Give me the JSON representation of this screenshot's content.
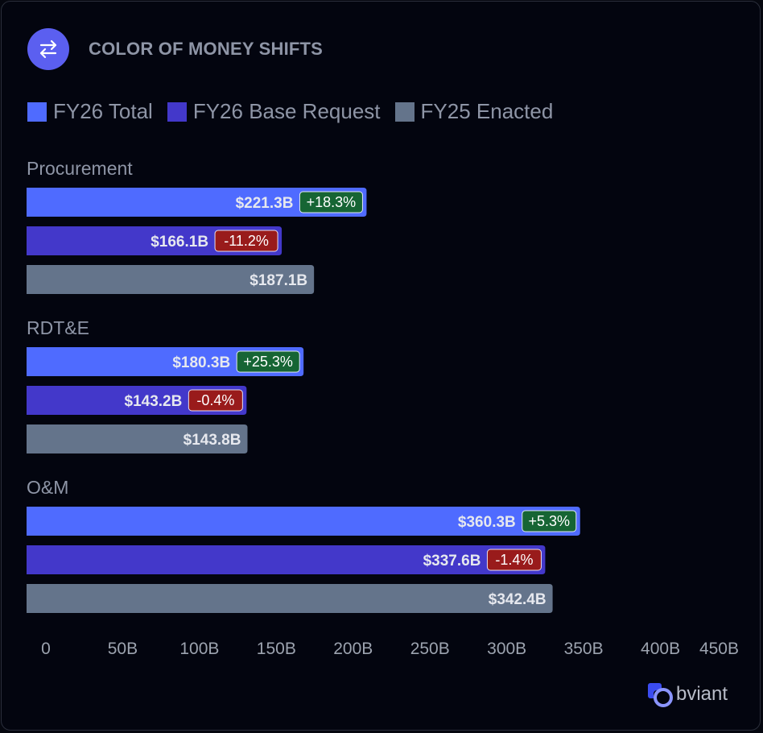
{
  "header": {
    "title": "COLOR OF MONEY SHIFTS",
    "icon": "swap-arrows-icon"
  },
  "colors": {
    "fy26_total": "#4f6bff",
    "fy26_base": "#4338ca",
    "fy25_enacted": "#64748b",
    "badge_up": "#166534",
    "badge_down": "#991b1b",
    "label_text": "#e6e8ee",
    "muted_text": "#8e95a6",
    "axis_text": "#9ca3af"
  },
  "chart_data": {
    "type": "bar",
    "orientation": "horizontal",
    "title": "COLOR OF MONEY SHIFTS",
    "series_names": [
      "FY26 Total",
      "FY26 Base Request",
      "FY25 Enacted"
    ],
    "categories": [
      {
        "name": "Procurement",
        "bars": [
          {
            "series": "FY26 Total",
            "value": 221.3,
            "label": "$221.3B",
            "change": "+18.3%",
            "direction": "up"
          },
          {
            "series": "FY26 Base Request",
            "value": 166.1,
            "label": "$166.1B",
            "change": "-11.2%",
            "direction": "down"
          },
          {
            "series": "FY25 Enacted",
            "value": 187.1,
            "label": "$187.1B"
          }
        ]
      },
      {
        "name": "RDT&E",
        "bars": [
          {
            "series": "FY26 Total",
            "value": 180.3,
            "label": "$180.3B",
            "change": "+25.3%",
            "direction": "up"
          },
          {
            "series": "FY26 Base Request",
            "value": 143.2,
            "label": "$143.2B",
            "change": "-0.4%",
            "direction": "down"
          },
          {
            "series": "FY25 Enacted",
            "value": 143.8,
            "label": "$143.8B"
          }
        ]
      },
      {
        "name": "O&M",
        "bars": [
          {
            "series": "FY26 Total",
            "value": 360.3,
            "label": "$360.3B",
            "change": "+5.3%",
            "direction": "up"
          },
          {
            "series": "FY26 Base Request",
            "value": 337.6,
            "label": "$337.6B",
            "change": "-1.4%",
            "direction": "down"
          },
          {
            "series": "FY25 Enacted",
            "value": 342.4,
            "label": "$342.4B"
          }
        ]
      }
    ],
    "xlim": [
      0,
      450
    ],
    "xticks": [
      {
        "value": 0,
        "label": "0"
      },
      {
        "value": 50,
        "label": "50B"
      },
      {
        "value": 100,
        "label": "100B"
      },
      {
        "value": 150,
        "label": "150B"
      },
      {
        "value": 200,
        "label": "200B"
      },
      {
        "value": 250,
        "label": "250B"
      },
      {
        "value": 300,
        "label": "300B"
      },
      {
        "value": 350,
        "label": "350B"
      },
      {
        "value": 400,
        "label": "400B"
      },
      {
        "value": 450,
        "label": "450B"
      }
    ],
    "xlabel": "",
    "ylabel": "",
    "grid": false,
    "legend": "top-left"
  },
  "legend": [
    {
      "label": "FY26 Total",
      "color": "#4f6bff"
    },
    {
      "label": "FY26 Base Request",
      "color": "#4338ca"
    },
    {
      "label": "FY25 Enacted",
      "color": "#64748b"
    }
  ],
  "brand": {
    "name": "bviant",
    "icon": "obviant-logo-icon"
  }
}
